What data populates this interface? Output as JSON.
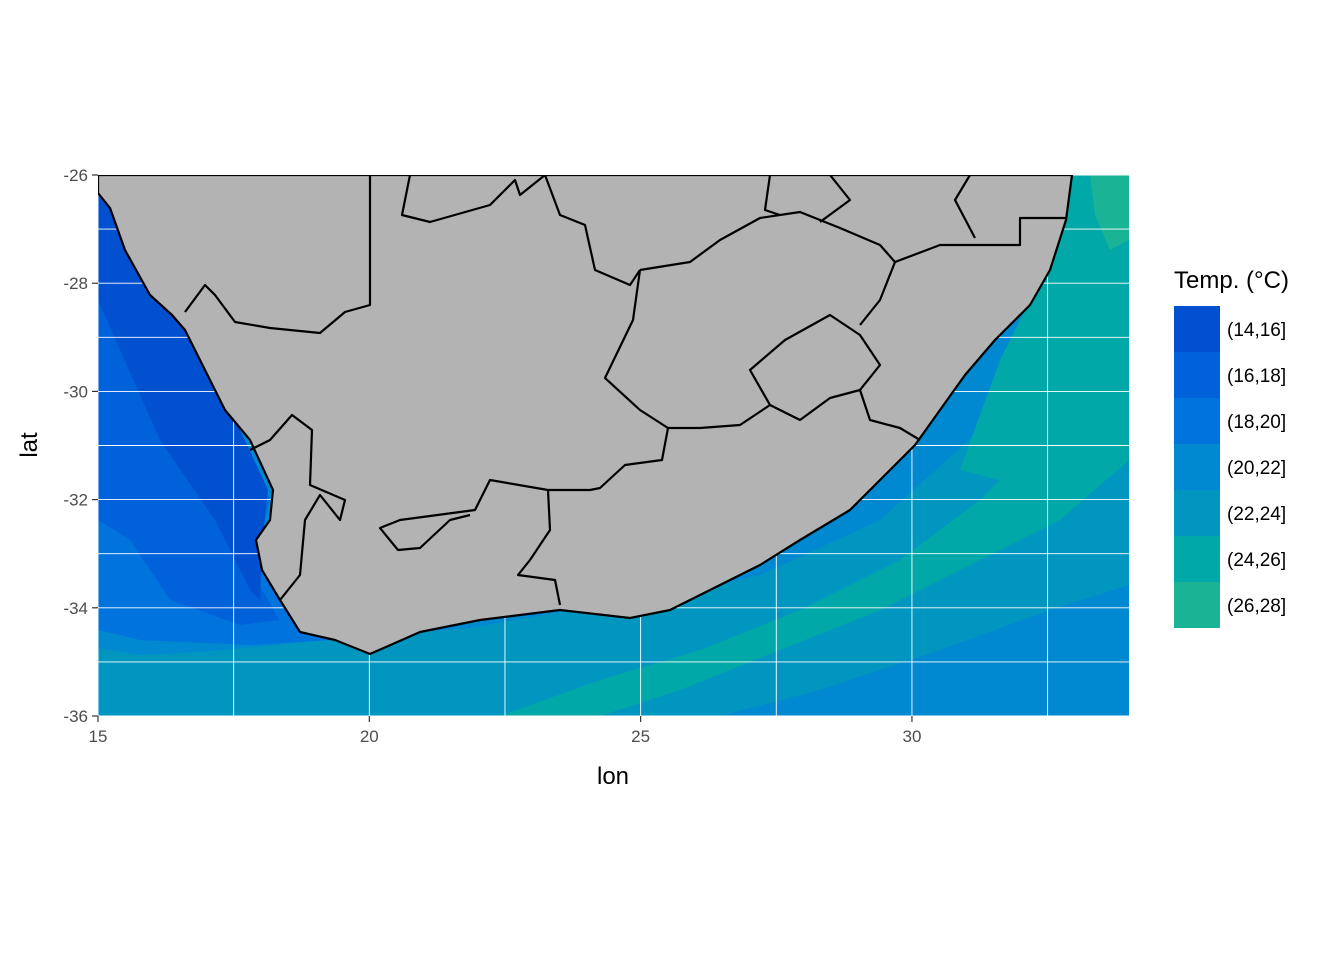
{
  "chart_data": {
    "type": "heatmap",
    "title": "",
    "xlabel": "lon",
    "ylabel": "lat",
    "xlim": [
      15,
      34
    ],
    "ylim": [
      -36,
      -26
    ],
    "x_ticks": [
      15,
      20,
      25,
      30
    ],
    "x_tick_labels": [
      "15",
      "20",
      "25",
      "30"
    ],
    "y_ticks": [
      -26,
      -28,
      -30,
      -32,
      -34,
      -36
    ],
    "y_tick_labels": [
      "-26",
      "-28",
      "-30",
      "-32",
      "-34",
      "-36"
    ],
    "grid": true,
    "legend": {
      "title": "Temp. (°C)",
      "position": "right",
      "entries": [
        {
          "label": "(14,16]",
          "color": "#0050D0"
        },
        {
          "label": "(16,18]",
          "color": "#0062DA"
        },
        {
          "label": "(18,20]",
          "color": "#0074DC"
        },
        {
          "label": "(20,22]",
          "color": "#0088D0"
        },
        {
          "label": "(22,24]",
          "color": "#0096C0"
        },
        {
          "label": "(24,26]",
          "color": "#00A8A8"
        },
        {
          "label": "(26,28]",
          "color": "#1AB396"
        }
      ]
    },
    "land_color": "#B3B3B3",
    "border_color": "#000000"
  }
}
